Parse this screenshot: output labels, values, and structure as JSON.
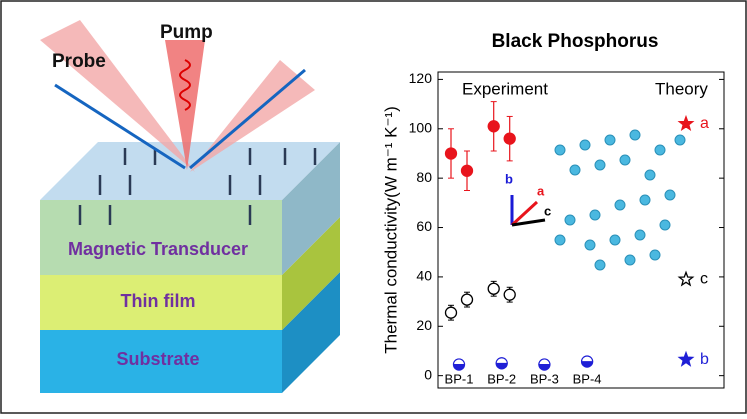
{
  "diagram": {
    "labels": [
      "Probe",
      "Pump",
      "Magnetic Transducer",
      "Thin film",
      "Substrate"
    ]
  },
  "chart_data": {
    "type": "scatter",
    "title": "Black Phosphorus",
    "ylabel": "Thermal conductivity(W m⁻¹ K⁻¹)",
    "annotations": [
      "Experiment",
      "Theory"
    ],
    "inset_axes": [
      "b",
      "a",
      "c"
    ],
    "categories": [
      "BP-1",
      "BP-2",
      "BP-3",
      "BP-4"
    ],
    "ylim": [
      -5,
      123
    ],
    "yticks": [
      0,
      20,
      40,
      60,
      80,
      100,
      120
    ],
    "grid": false,
    "series": [
      {
        "name": "a",
        "color": "#e8141c",
        "values": [
          [
            90,
            83
          ],
          [
            101,
            96
          ],
          null,
          null
        ],
        "errors": [
          [
            10,
            8
          ],
          [
            10,
            9
          ],
          null,
          null
        ],
        "theory": 102
      },
      {
        "name": "c",
        "color": "#000000",
        "values": [
          [
            25.5,
            30.8
          ],
          [
            35.2,
            32.8
          ],
          null,
          null
        ],
        "errors": [
          [
            3,
            3
          ],
          [
            3,
            3
          ],
          null,
          null
        ],
        "theory": 39
      },
      {
        "name": "b",
        "color": "#1f1fd6",
        "values": [
          [
            4.5
          ],
          [
            5
          ],
          [
            4.5
          ],
          [
            5.7
          ]
        ],
        "errors": [
          null,
          null,
          null,
          null
        ],
        "theory": 6.5
      }
    ]
  }
}
